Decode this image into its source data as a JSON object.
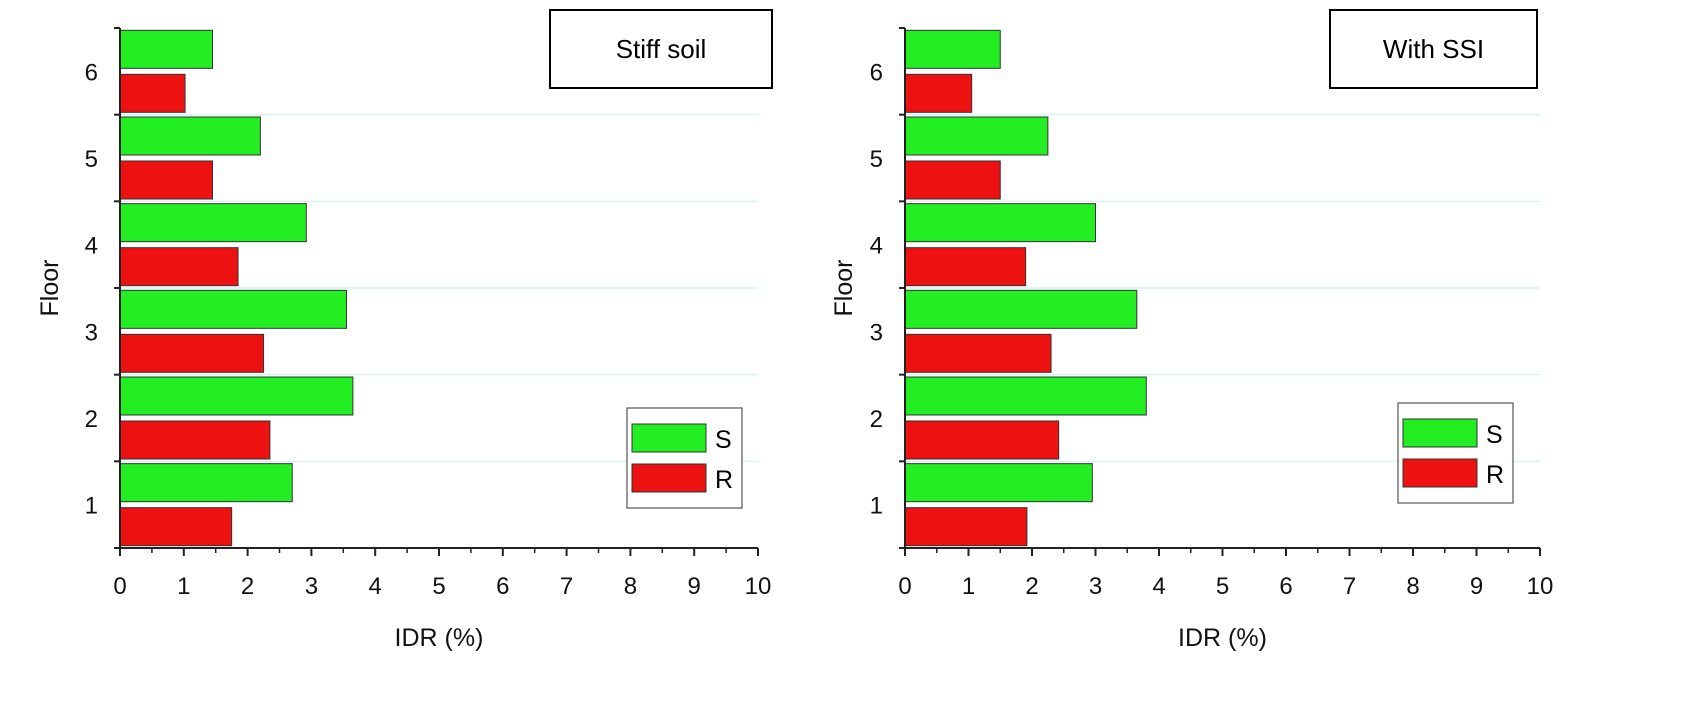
{
  "colors": {
    "S": "#22ee22",
    "R": "#ee1111",
    "gridline": "#cdeff5",
    "axis": "#222222"
  },
  "chart_data": [
    {
      "type": "bar",
      "orientation": "horizontal",
      "annotation": "Stiff soil",
      "xlabel": "IDR (%)",
      "ylabel": "Floor",
      "xlim": [
        0,
        10
      ],
      "x_ticks": [
        "0",
        "1",
        "2",
        "3",
        "4",
        "5",
        "6",
        "7",
        "8",
        "9",
        "10"
      ],
      "categories": [
        "1",
        "2",
        "3",
        "4",
        "5",
        "6"
      ],
      "series": [
        {
          "name": "S",
          "values": [
            2.7,
            3.65,
            3.55,
            2.92,
            2.2,
            1.45
          ]
        },
        {
          "name": "R",
          "values": [
            1.75,
            2.35,
            2.25,
            1.85,
            1.45,
            1.02
          ]
        }
      ],
      "legend": {
        "position": "bottom-right",
        "entries": [
          "S",
          "R"
        ]
      },
      "grid": "horizontal gridlines between floors"
    },
    {
      "type": "bar",
      "orientation": "horizontal",
      "annotation": "With SSI",
      "xlabel": "IDR (%)",
      "ylabel": "Floor",
      "xlim": [
        0,
        10
      ],
      "x_ticks": [
        "0",
        "1",
        "2",
        "3",
        "4",
        "5",
        "6",
        "7",
        "8",
        "9",
        "10"
      ],
      "categories": [
        "1",
        "2",
        "3",
        "4",
        "5",
        "6"
      ],
      "series": [
        {
          "name": "S",
          "values": [
            2.95,
            3.8,
            3.65,
            3.0,
            2.25,
            1.5
          ]
        },
        {
          "name": "R",
          "values": [
            1.92,
            2.42,
            2.3,
            1.9,
            1.5,
            1.05
          ]
        }
      ],
      "legend": {
        "position": "bottom-right",
        "entries": [
          "S",
          "R"
        ]
      },
      "grid": "horizontal gridlines between floors"
    }
  ]
}
